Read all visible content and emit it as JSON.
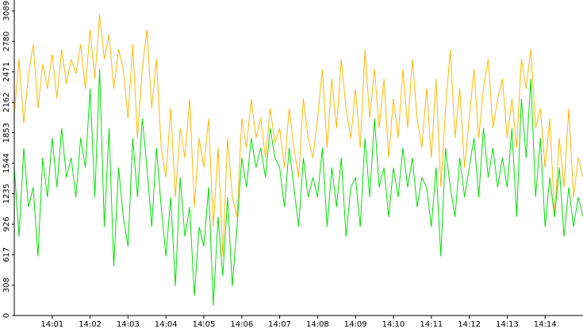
{
  "chart_data": {
    "type": "line",
    "x": [
      0,
      0.125,
      0.25,
      0.375,
      0.5,
      0.625,
      0.75,
      0.875,
      1,
      1.125,
      1.25,
      1.375,
      1.5,
      1.625,
      1.75,
      1.875,
      2,
      2.125,
      2.25,
      2.375,
      2.5,
      2.625,
      2.75,
      2.875,
      3,
      3.125,
      3.25,
      3.375,
      3.5,
      3.625,
      3.75,
      3.875,
      4,
      4.125,
      4.25,
      4.375,
      4.5,
      4.625,
      4.75,
      4.875,
      5,
      5.125,
      5.25,
      5.375,
      5.5,
      5.625,
      5.75,
      5.875,
      6,
      6.125,
      6.25,
      6.375,
      6.5,
      6.625,
      6.75,
      6.875,
      7,
      7.125,
      7.25,
      7.375,
      7.5,
      7.625,
      7.75,
      7.875,
      8,
      8.125,
      8.25,
      8.375,
      8.5,
      8.625,
      8.75,
      8.875,
      9,
      9.125,
      9.25,
      9.375,
      9.5,
      9.625,
      9.75,
      9.875,
      10,
      10.125,
      10.25,
      10.375,
      10.5,
      10.625,
      10.75,
      10.875,
      11,
      11.125,
      11.25,
      11.375,
      11.5,
      11.625,
      11.75,
      11.875,
      12,
      12.125,
      12.25,
      12.375,
      12.5,
      12.625,
      12.75,
      12.875,
      13,
      13.125,
      13.25,
      13.375,
      13.5,
      13.625,
      13.75,
      13.875,
      14,
      14.125,
      14.25,
      14.375,
      14.5,
      14.625,
      14.75,
      14.875,
      15
    ],
    "series": [
      {
        "color": "#ffb800",
        "values": [
          2050,
          2600,
          1950,
          2450,
          2750,
          2100,
          2550,
          2300,
          2650,
          2200,
          2700,
          2350,
          2600,
          2450,
          2750,
          2300,
          2900,
          2400,
          3050,
          2600,
          2850,
          2300,
          2700,
          2500,
          2000,
          2750,
          1800,
          2500,
          2900,
          2100,
          2600,
          1700,
          1400,
          2100,
          1200,
          1900,
          1600,
          2200,
          1100,
          1800,
          1500,
          2000,
          900,
          1700,
          600,
          1800,
          1200,
          1000,
          2000,
          1700,
          2200,
          1800,
          2000,
          1600,
          2100,
          1750,
          1900,
          1500,
          2100,
          1700,
          1400,
          2200,
          1800,
          1600,
          2000,
          2500,
          1700,
          2400,
          1900,
          2600,
          2100,
          1800,
          2300,
          1700,
          2700,
          2000,
          2500,
          1900,
          2400,
          1600,
          2200,
          1800,
          2500,
          1900,
          2600,
          2000,
          1700,
          2300,
          1600,
          2400,
          1300,
          2100,
          2700,
          1800,
          2300,
          1500,
          2000,
          2500,
          1800,
          2300,
          2600,
          1900,
          2200,
          2400,
          1800,
          2200,
          1700,
          2600,
          2300,
          2700,
          1900,
          2100,
          1500,
          2000,
          1000,
          1800,
          1300,
          2100,
          1200,
          1600,
          1400
        ]
      },
      {
        "color": "#00e000",
        "values": [
          1500,
          800,
          1700,
          1100,
          1300,
          600,
          1600,
          1200,
          1800,
          1300,
          1900,
          1400,
          1600,
          1200,
          1800,
          1500,
          2300,
          1200,
          2500,
          900,
          1900,
          500,
          1500,
          1000,
          700,
          1800,
          1200,
          2000,
          1500,
          900,
          1700,
          1100,
          600,
          1200,
          300,
          1400,
          800,
          1100,
          200,
          900,
          700,
          1300,
          100,
          1000,
          400,
          1200,
          300,
          900,
          1600,
          1300,
          1800,
          1500,
          1700,
          1400,
          1900,
          1600,
          1500,
          1100,
          1700,
          1300,
          900,
          1600,
          1200,
          1400,
          1200,
          1700,
          900,
          1500,
          1100,
          1600,
          800,
          1300,
          1400,
          900,
          1800,
          1200,
          2000,
          1300,
          1500,
          1000,
          1500,
          1200,
          1700,
          1300,
          1600,
          1100,
          1400,
          1300,
          900,
          1500,
          600,
          1700,
          1300,
          1000,
          1600,
          1200,
          1500,
          1800,
          1200,
          1900,
          1400,
          1700,
          1300,
          1600,
          1300,
          1900,
          1000,
          2200,
          1600,
          2400,
          1200,
          1800,
          900,
          1400,
          1000,
          1500,
          800,
          1300,
          900,
          1200,
          1000
        ]
      }
    ],
    "xlim": [
      0,
      15
    ],
    "xticks": [
      {
        "value": 1,
        "label": "14:01"
      },
      {
        "value": 2,
        "label": "14:02"
      },
      {
        "value": 3,
        "label": "14:03"
      },
      {
        "value": 4,
        "label": "14:04"
      },
      {
        "value": 5,
        "label": "14:05"
      },
      {
        "value": 6,
        "label": "14:06"
      },
      {
        "value": 7,
        "label": "14:07"
      },
      {
        "value": 8,
        "label": "14:08"
      },
      {
        "value": 9,
        "label": "14:09"
      },
      {
        "value": 10,
        "label": "14:10"
      },
      {
        "value": 11,
        "label": "14:11"
      },
      {
        "value": 12,
        "label": "14:12"
      },
      {
        "value": 13,
        "label": "14:13"
      },
      {
        "value": 14,
        "label": "14:14"
      }
    ],
    "ylim": [
      0,
      3200
    ],
    "yticks": [
      0,
      308,
      617,
      926,
      1235,
      1544,
      1853,
      2162,
      2471,
      2780,
      3089
    ]
  }
}
